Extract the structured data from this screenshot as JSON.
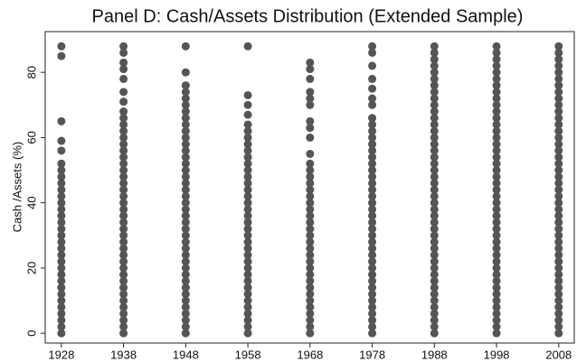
{
  "chart_data": {
    "type": "strip",
    "title": "Panel D: Cash/Assets Distribution (Extended Sample)",
    "y_label": "Cash /Assets (%)",
    "color": "#555555",
    "xlim": [
      1925.4,
      2010.5
    ],
    "xticks": [
      1928,
      1938,
      1948,
      1958,
      1968,
      1978,
      1988,
      1998,
      2008
    ],
    "ylim": [
      -3,
      92.5
    ],
    "yticks": [
      0,
      20,
      40,
      60,
      80
    ],
    "series": [
      {
        "x": 1928,
        "values": [
          0,
          2,
          4,
          6,
          8,
          10,
          12,
          14,
          16,
          18,
          20,
          22,
          24,
          26,
          28,
          30,
          32,
          34,
          36,
          38,
          40,
          42,
          44,
          46,
          48,
          50,
          52,
          56,
          59,
          65,
          85,
          88
        ]
      },
      {
        "x": 1938,
        "values": [
          0,
          2,
          4,
          6,
          8,
          10,
          12,
          14,
          16,
          18,
          20,
          22,
          24,
          26,
          28,
          30,
          32,
          34,
          36,
          38,
          40,
          42,
          44,
          46,
          48,
          50,
          52,
          54,
          56,
          58,
          60,
          62,
          64,
          66,
          68,
          71,
          74,
          78,
          81,
          83,
          86,
          88
        ]
      },
      {
        "x": 1948,
        "values": [
          0,
          2,
          4,
          6,
          8,
          10,
          12,
          14,
          16,
          18,
          20,
          22,
          24,
          26,
          28,
          30,
          32,
          34,
          36,
          38,
          40,
          42,
          44,
          46,
          48,
          50,
          52,
          54,
          56,
          58,
          60,
          62,
          64,
          66,
          68,
          70,
          72,
          74,
          76,
          80,
          88
        ]
      },
      {
        "x": 1958,
        "values": [
          0,
          2,
          4,
          6,
          8,
          10,
          12,
          14,
          16,
          18,
          20,
          22,
          24,
          26,
          28,
          30,
          32,
          34,
          36,
          38,
          40,
          42,
          44,
          46,
          48,
          50,
          52,
          54,
          56,
          58,
          60,
          62,
          64,
          67,
          70,
          73,
          88
        ]
      },
      {
        "x": 1968,
        "values": [
          0,
          2,
          4,
          6,
          8,
          10,
          12,
          14,
          16,
          18,
          20,
          22,
          24,
          26,
          28,
          30,
          32,
          34,
          36,
          38,
          40,
          42,
          44,
          46,
          48,
          50,
          52,
          55,
          60,
          63,
          65,
          70,
          72,
          74,
          78,
          81,
          83
        ]
      },
      {
        "x": 1978,
        "values": [
          0,
          2,
          4,
          6,
          8,
          10,
          12,
          14,
          16,
          18,
          20,
          22,
          24,
          26,
          28,
          30,
          32,
          34,
          36,
          38,
          40,
          42,
          44,
          46,
          48,
          50,
          52,
          54,
          56,
          58,
          60,
          62,
          64,
          66,
          70,
          72,
          75,
          78,
          82,
          86,
          88
        ]
      },
      {
        "x": 1988,
        "values": [
          0,
          2,
          4,
          6,
          8,
          10,
          12,
          14,
          16,
          18,
          20,
          22,
          24,
          26,
          28,
          30,
          32,
          34,
          36,
          38,
          40,
          42,
          44,
          46,
          48,
          50,
          52,
          54,
          56,
          58,
          60,
          62,
          64,
          66,
          68,
          70,
          72,
          74,
          76,
          78,
          80,
          82,
          84,
          86,
          88
        ]
      },
      {
        "x": 1998,
        "values": [
          0,
          2,
          4,
          6,
          8,
          10,
          12,
          14,
          16,
          18,
          20,
          22,
          24,
          26,
          28,
          30,
          32,
          34,
          36,
          38,
          40,
          42,
          44,
          46,
          48,
          50,
          52,
          54,
          56,
          58,
          60,
          62,
          64,
          66,
          68,
          70,
          72,
          74,
          76,
          78,
          80,
          82,
          84,
          86,
          88
        ]
      },
      {
        "x": 2008,
        "values": [
          0,
          2,
          4,
          6,
          8,
          10,
          12,
          14,
          16,
          18,
          20,
          22,
          24,
          26,
          28,
          30,
          32,
          34,
          36,
          38,
          40,
          42,
          44,
          46,
          48,
          50,
          52,
          54,
          56,
          58,
          60,
          62,
          64,
          66,
          68,
          70,
          72,
          74,
          76,
          78,
          80,
          82,
          84,
          86,
          88
        ]
      }
    ]
  }
}
